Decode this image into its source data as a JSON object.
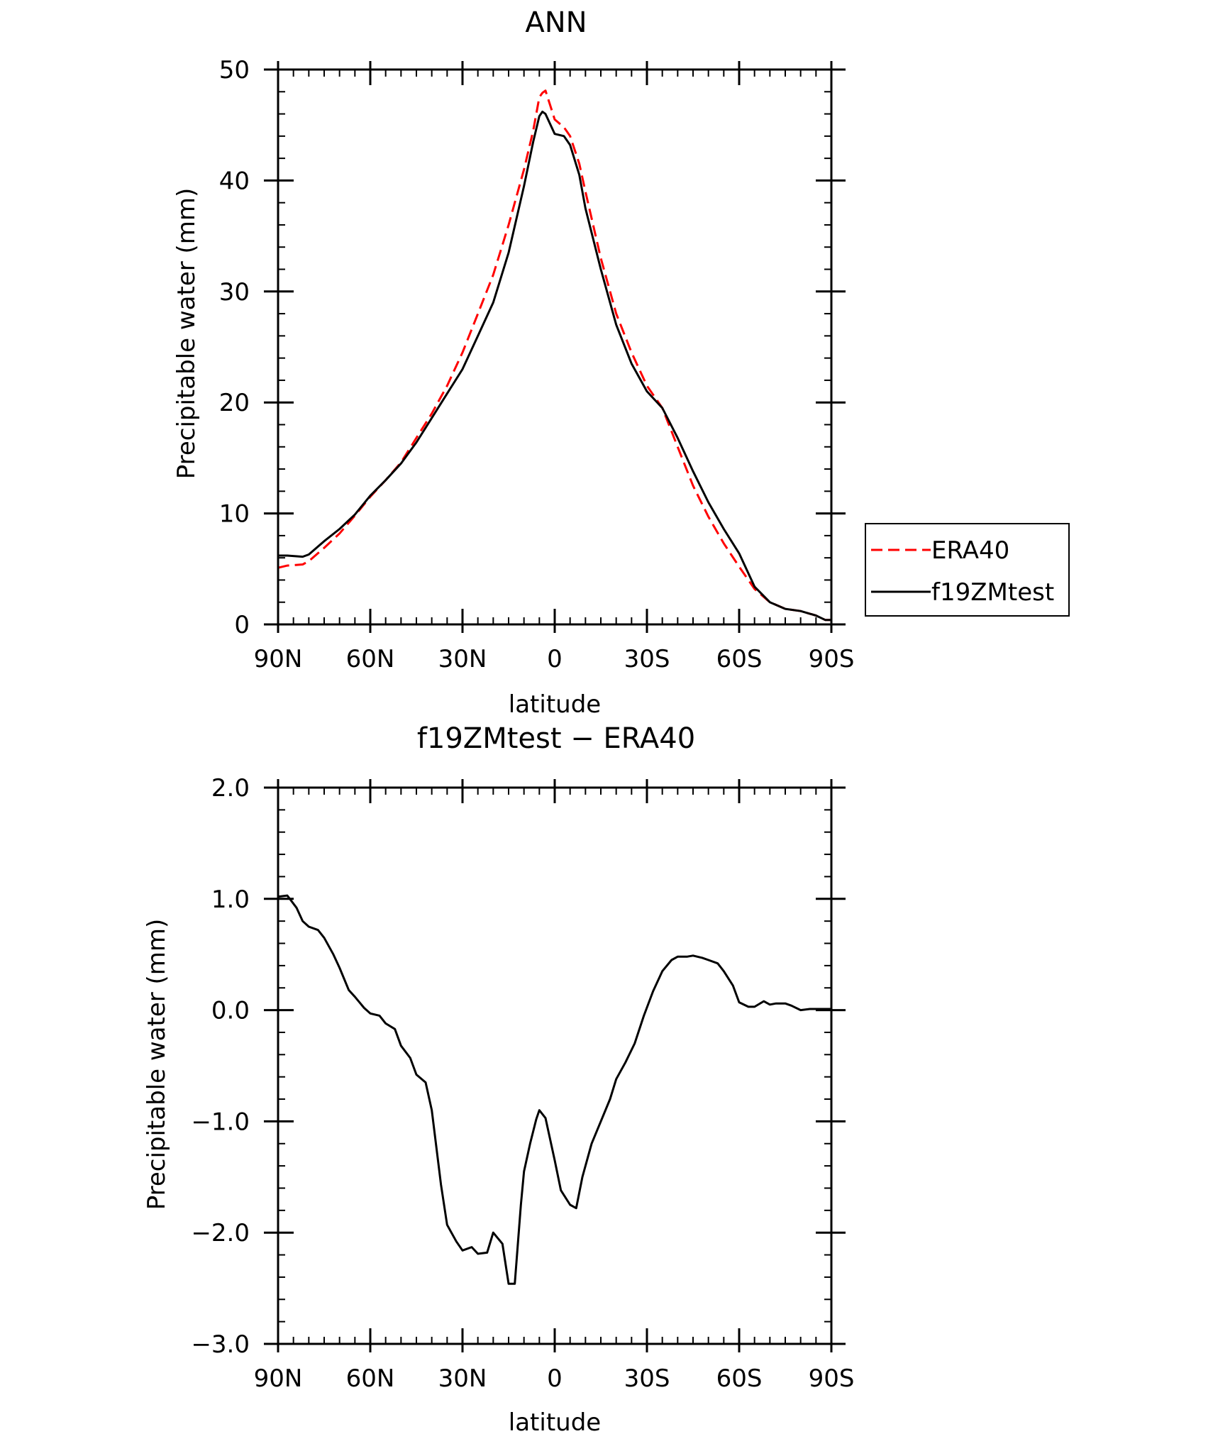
{
  "chart_data": [
    {
      "type": "line",
      "title": "ANN",
      "xlabel": "latitude",
      "ylabel": "Precipitable water (mm)",
      "xlim": [
        90,
        -90
      ],
      "ylim": [
        0,
        50
      ],
      "xticks": [
        {
          "value": 90,
          "label": "90N"
        },
        {
          "value": 60,
          "label": "60N"
        },
        {
          "value": 30,
          "label": "30N"
        },
        {
          "value": 0,
          "label": "0"
        },
        {
          "value": -30,
          "label": "30S"
        },
        {
          "value": -60,
          "label": "60S"
        },
        {
          "value": -90,
          "label": "90S"
        }
      ],
      "yticks": [
        {
          "value": 0,
          "label": "0"
        },
        {
          "value": 10,
          "label": "10"
        },
        {
          "value": 20,
          "label": "20"
        },
        {
          "value": 30,
          "label": "30"
        },
        {
          "value": 40,
          "label": "40"
        },
        {
          "value": 50,
          "label": "50"
        }
      ],
      "grid": false,
      "legend_position": "right",
      "series": [
        {
          "name": "ERA40",
          "color": "#ff0000",
          "dash": "dashed",
          "x": [
            90,
            87,
            82,
            80,
            75,
            70,
            65,
            60,
            55,
            50,
            45,
            40,
            35,
            30,
            25,
            20,
            15,
            10,
            7,
            5,
            4,
            3,
            0,
            -3,
            -5,
            -8,
            -10,
            -15,
            -20,
            -25,
            -30,
            -35,
            -40,
            -45,
            -50,
            -55,
            -60,
            -65,
            -70,
            -75,
            -80,
            -85,
            -88,
            -90
          ],
          "y": [
            5.1,
            5.3,
            5.4,
            5.7,
            6.9,
            8.2,
            9.8,
            11.5,
            13.0,
            14.6,
            16.8,
            19.0,
            21.5,
            24.5,
            28.0,
            31.5,
            36.0,
            41.0,
            44.5,
            47.5,
            47.9,
            48.1,
            45.5,
            44.8,
            44.0,
            41.5,
            39.0,
            33.0,
            28.0,
            24.5,
            21.5,
            19.5,
            16.0,
            12.5,
            9.7,
            7.3,
            5.2,
            3.2,
            2.0,
            1.4,
            1.2,
            0.8,
            0.4,
            0.4
          ]
        },
        {
          "name": "f19ZMtest",
          "color": "#000000",
          "dash": "solid",
          "x": [
            90,
            87,
            82,
            80,
            75,
            70,
            65,
            60,
            55,
            50,
            45,
            40,
            35,
            30,
            25,
            20,
            15,
            10,
            7,
            5,
            4,
            3,
            0,
            -3,
            -5,
            -8,
            -10,
            -15,
            -20,
            -25,
            -30,
            -35,
            -40,
            -45,
            -50,
            -55,
            -60,
            -65,
            -70,
            -75,
            -80,
            -85,
            -88,
            -90
          ],
          "y": [
            6.2,
            6.2,
            6.1,
            6.3,
            7.5,
            8.6,
            9.9,
            11.6,
            13.0,
            14.5,
            16.4,
            18.6,
            20.8,
            23.0,
            26.0,
            29.0,
            33.5,
            39.5,
            43.5,
            45.8,
            46.2,
            46.0,
            44.2,
            44.0,
            43.2,
            40.5,
            37.5,
            32.0,
            27.0,
            23.5,
            21.0,
            19.5,
            16.8,
            13.8,
            11.0,
            8.6,
            6.4,
            3.4,
            2.0,
            1.4,
            1.2,
            0.8,
            0.4,
            0.4
          ]
        }
      ]
    },
    {
      "type": "line",
      "title": "f19ZMtest − ERA40",
      "xlabel": "latitude",
      "ylabel": "Precipitable water (mm)",
      "xlim": [
        90,
        -90
      ],
      "ylim": [
        -3.0,
        2.0
      ],
      "xticks": [
        {
          "value": 90,
          "label": "90N"
        },
        {
          "value": 60,
          "label": "60N"
        },
        {
          "value": 30,
          "label": "30N"
        },
        {
          "value": 0,
          "label": "0"
        },
        {
          "value": -30,
          "label": "30S"
        },
        {
          "value": -60,
          "label": "60S"
        },
        {
          "value": -90,
          "label": "90S"
        }
      ],
      "yticks": [
        {
          "value": 2.0,
          "label": "2.0"
        },
        {
          "value": 1.0,
          "label": "1.0"
        },
        {
          "value": 0.0,
          "label": "0.0"
        },
        {
          "value": -1.0,
          "label": "−1.0"
        },
        {
          "value": -2.0,
          "label": "−2.0"
        },
        {
          "value": -3.0,
          "label": "−3.0"
        }
      ],
      "grid": false,
      "series": [
        {
          "color": "#000000",
          "dash": "solid",
          "x": [
            90,
            87,
            84,
            82,
            80,
            77,
            75,
            72,
            70,
            67,
            65,
            62,
            60,
            57,
            55,
            52,
            50,
            47,
            45,
            42,
            40,
            37,
            35,
            32,
            30,
            27,
            25,
            22,
            20,
            17,
            15,
            13,
            11,
            10,
            8,
            6,
            5,
            3,
            0,
            -2,
            -5,
            -7,
            -9,
            -12,
            -15,
            -18,
            -20,
            -23,
            -26,
            -29,
            -32,
            -35,
            -38,
            -40,
            -43,
            -45,
            -48,
            -50,
            -53,
            -55,
            -58,
            -60,
            -63,
            -65,
            -68,
            -70,
            -72,
            -75,
            -77,
            -80,
            -83,
            -85,
            -88,
            -90
          ],
          "y": [
            1.02,
            1.03,
            0.92,
            0.8,
            0.75,
            0.72,
            0.65,
            0.5,
            0.38,
            0.18,
            0.12,
            0.02,
            -0.03,
            -0.05,
            -0.12,
            -0.17,
            -0.32,
            -0.43,
            -0.58,
            -0.65,
            -0.9,
            -1.57,
            -1.93,
            -2.08,
            -2.16,
            -2.13,
            -2.19,
            -2.18,
            -2.0,
            -2.1,
            -2.46,
            -2.46,
            -1.75,
            -1.45,
            -1.2,
            -0.98,
            -0.9,
            -0.97,
            -1.35,
            -1.62,
            -1.75,
            -1.78,
            -1.5,
            -1.2,
            -1.0,
            -0.8,
            -0.62,
            -0.47,
            -0.3,
            -0.05,
            0.17,
            0.35,
            0.45,
            0.48,
            0.48,
            0.49,
            0.47,
            0.45,
            0.42,
            0.35,
            0.22,
            0.07,
            0.03,
            0.03,
            0.08,
            0.05,
            0.06,
            0.06,
            0.04,
            0.0,
            0.01,
            0.01,
            0.01,
            0.01
          ]
        }
      ]
    }
  ]
}
